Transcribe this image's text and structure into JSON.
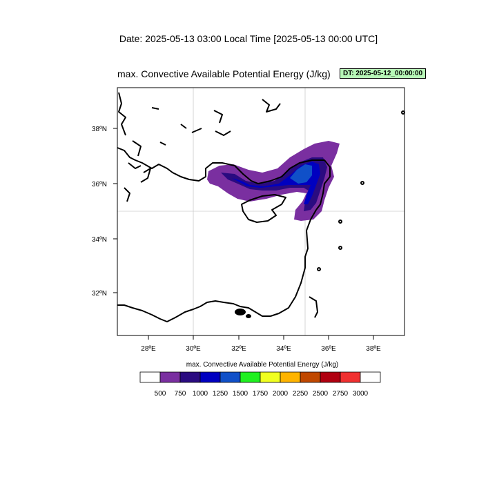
{
  "header": {
    "date_line": "Date: 2025-05-13  03:00 Local Time [2025-05-13  00:00 UTC]",
    "map_title": "max. Convective Available Potential Energy   (J/kg)",
    "dt_badge": "DT: 2025-05-12_00:00:00"
  },
  "map": {
    "lon_range": [
      26.6,
      39.4
    ],
    "lat_range": [
      30.4,
      39.5
    ],
    "lon_ticks": [
      "28ºE",
      "30ºE",
      "32ºE",
      "34ºE",
      "36ºE",
      "38ºE"
    ],
    "lat_ticks": [
      "38ºN",
      "36ºN",
      "34ºN",
      "32ºN"
    ],
    "gridlines": [
      "30ºE",
      "35ºE",
      "35ºN"
    ]
  },
  "colorbar": {
    "title": "max. Convective Available Potential Energy  (J/kg)",
    "labels": [
      "500",
      "750",
      "1000",
      "1250",
      "1500",
      "1750",
      "2000",
      "2250",
      "2500",
      "2750",
      "3000"
    ],
    "colors": [
      "#ffffff",
      "#7a2fa0",
      "#2a0b80",
      "#0000c0",
      "#1050c8",
      "#20f020",
      "#f0ff20",
      "#ffb400",
      "#c04800",
      "#b00010",
      "#f03030",
      "#ffffff"
    ]
  },
  "cape_colors": {
    "c500": "#7a2fa0",
    "c750": "#2a0b80",
    "c1000": "#0000c0",
    "c1250": "#1050c8"
  }
}
